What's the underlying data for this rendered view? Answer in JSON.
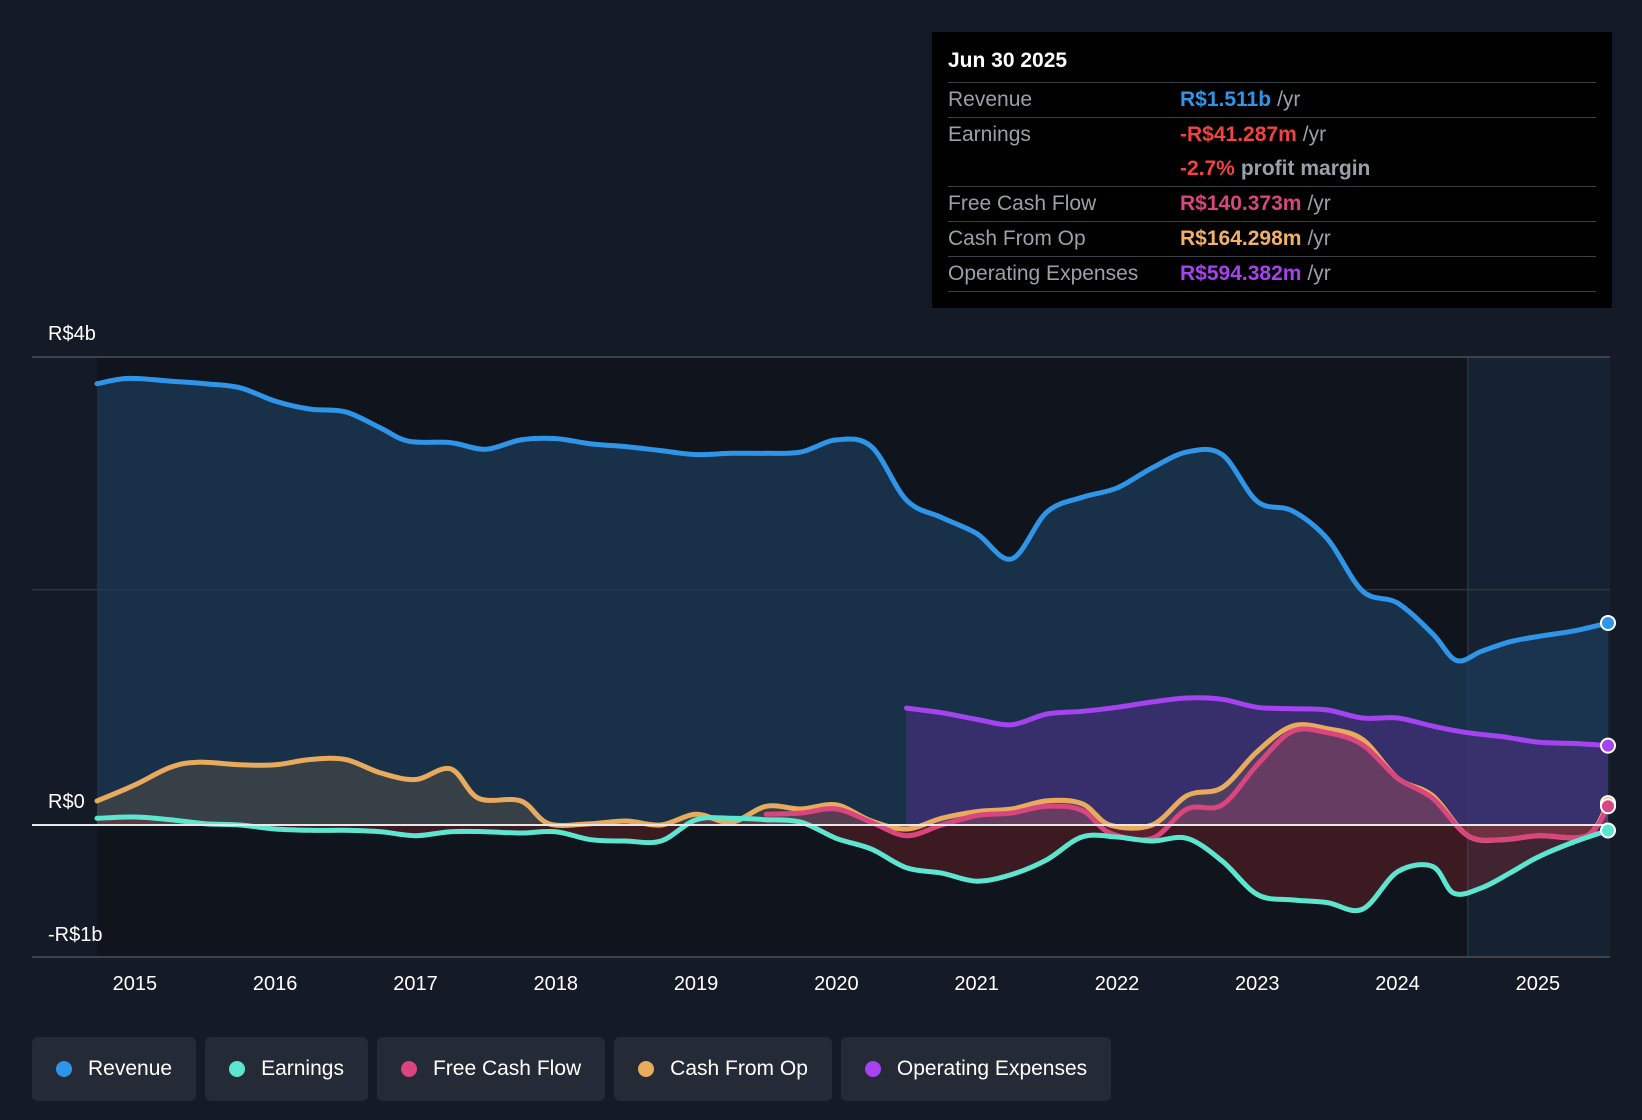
{
  "tooltip": {
    "date": "Jun 30 2025",
    "rows": [
      {
        "label": "Revenue",
        "value": "R$1.511b",
        "unit": "/yr",
        "color": "#2f95e8"
      },
      {
        "label": "Earnings",
        "value": "-R$41.287m",
        "unit": "/yr",
        "color": "#ef4444"
      },
      {
        "label": "",
        "value": "-2.7%",
        "unit": "profit margin",
        "color": "#ef4444"
      },
      {
        "label": "Free Cash Flow",
        "value": "R$140.373m",
        "unit": "/yr",
        "color": "#d9457e"
      },
      {
        "label": "Cash From Op",
        "value": "R$164.298m",
        "unit": "/yr",
        "color": "#f2b166"
      },
      {
        "label": "Operating Expenses",
        "value": "R$594.382m",
        "unit": "/yr",
        "color": "#a443ef"
      }
    ]
  },
  "legend": [
    {
      "label": "Revenue",
      "color": "#2f95e8"
    },
    {
      "label": "Earnings",
      "color": "#5ce6d0"
    },
    {
      "label": "Free Cash Flow",
      "color": "#d9457e"
    },
    {
      "label": "Cash From Op",
      "color": "#e8aa5c"
    },
    {
      "label": "Operating Expenses",
      "color": "#a443ef"
    }
  ],
  "chart_data": {
    "type": "line",
    "y_tick_labels": [
      "R$4b",
      "R$0",
      "-R$1b"
    ],
    "ylim": [
      -1.0,
      3.5
    ],
    "xlim": [
      2014.73,
      2025.5
    ],
    "x_tick_labels": [
      "2015",
      "2016",
      "2017",
      "2018",
      "2019",
      "2020",
      "2021",
      "2022",
      "2023",
      "2024",
      "2025"
    ],
    "x_ticks": [
      2015,
      2016,
      2017,
      2018,
      2019,
      2020,
      2021,
      2022,
      2023,
      2024,
      2025
    ],
    "forecast_start": 2024.5,
    "series": [
      {
        "name": "Revenue",
        "color": "#2f95e8",
        "points": [
          [
            2014.73,
            3.3
          ],
          [
            2014.95,
            3.34
          ],
          [
            2015.25,
            3.32
          ],
          [
            2015.5,
            3.3
          ],
          [
            2015.75,
            3.27
          ],
          [
            2016.0,
            3.17
          ],
          [
            2016.25,
            3.11
          ],
          [
            2016.5,
            3.09
          ],
          [
            2016.75,
            2.97
          ],
          [
            2016.95,
            2.87
          ],
          [
            2017.25,
            2.86
          ],
          [
            2017.5,
            2.81
          ],
          [
            2017.75,
            2.88
          ],
          [
            2018.0,
            2.89
          ],
          [
            2018.25,
            2.85
          ],
          [
            2018.5,
            2.83
          ],
          [
            2018.75,
            2.8
          ],
          [
            2019.0,
            2.77
          ],
          [
            2019.25,
            2.78
          ],
          [
            2019.5,
            2.78
          ],
          [
            2019.75,
            2.79
          ],
          [
            2020.0,
            2.88
          ],
          [
            2020.25,
            2.83
          ],
          [
            2020.5,
            2.43
          ],
          [
            2020.75,
            2.3
          ],
          [
            2021.0,
            2.18
          ],
          [
            2021.25,
            1.99
          ],
          [
            2021.5,
            2.34
          ],
          [
            2021.75,
            2.45
          ],
          [
            2022.0,
            2.52
          ],
          [
            2022.25,
            2.67
          ],
          [
            2022.5,
            2.79
          ],
          [
            2022.75,
            2.77
          ],
          [
            2023.0,
            2.42
          ],
          [
            2023.25,
            2.35
          ],
          [
            2023.5,
            2.14
          ],
          [
            2023.75,
            1.75
          ],
          [
            2024.0,
            1.66
          ],
          [
            2024.25,
            1.43
          ],
          [
            2024.42,
            1.23
          ],
          [
            2024.6,
            1.3
          ],
          [
            2024.8,
            1.37
          ],
          [
            2025.0,
            1.41
          ],
          [
            2025.25,
            1.45
          ],
          [
            2025.5,
            1.511
          ]
        ]
      },
      {
        "name": "Operating Expenses",
        "color": "#a443ef",
        "points": [
          [
            2020.5,
            0.874
          ],
          [
            2020.75,
            0.84
          ],
          [
            2021.0,
            0.79
          ],
          [
            2021.25,
            0.75
          ],
          [
            2021.5,
            0.83
          ],
          [
            2021.75,
            0.85
          ],
          [
            2022.0,
            0.88
          ],
          [
            2022.25,
            0.92
          ],
          [
            2022.5,
            0.95
          ],
          [
            2022.75,
            0.94
          ],
          [
            2023.0,
            0.88
          ],
          [
            2023.25,
            0.87
          ],
          [
            2023.5,
            0.86
          ],
          [
            2023.75,
            0.8
          ],
          [
            2024.0,
            0.8
          ],
          [
            2024.25,
            0.74
          ],
          [
            2024.5,
            0.69
          ],
          [
            2024.75,
            0.66
          ],
          [
            2025.0,
            0.62
          ],
          [
            2025.25,
            0.61
          ],
          [
            2025.5,
            0.594
          ]
        ]
      },
      {
        "name": "Cash From Op",
        "color": "#e8aa5c",
        "points": [
          [
            2014.73,
            0.18
          ],
          [
            2015.0,
            0.3
          ],
          [
            2015.25,
            0.43
          ],
          [
            2015.45,
            0.47
          ],
          [
            2015.75,
            0.45
          ],
          [
            2016.0,
            0.45
          ],
          [
            2016.25,
            0.49
          ],
          [
            2016.5,
            0.49
          ],
          [
            2016.75,
            0.39
          ],
          [
            2017.0,
            0.34
          ],
          [
            2017.25,
            0.42
          ],
          [
            2017.45,
            0.2
          ],
          [
            2017.75,
            0.18
          ],
          [
            2017.95,
            0.01
          ],
          [
            2018.25,
            0.01
          ],
          [
            2018.5,
            0.03
          ],
          [
            2018.75,
            0.0
          ],
          [
            2019.0,
            0.08
          ],
          [
            2019.25,
            0.02
          ],
          [
            2019.5,
            0.14
          ],
          [
            2019.75,
            0.12
          ],
          [
            2020.0,
            0.15
          ],
          [
            2020.25,
            0.03
          ],
          [
            2020.5,
            -0.03
          ],
          [
            2020.75,
            0.05
          ],
          [
            2021.0,
            0.1
          ],
          [
            2021.25,
            0.12
          ],
          [
            2021.5,
            0.18
          ],
          [
            2021.75,
            0.16
          ],
          [
            2021.95,
            0.0
          ],
          [
            2022.25,
            0.0
          ],
          [
            2022.5,
            0.22
          ],
          [
            2022.75,
            0.28
          ],
          [
            2023.0,
            0.55
          ],
          [
            2023.25,
            0.74
          ],
          [
            2023.5,
            0.72
          ],
          [
            2023.75,
            0.64
          ],
          [
            2024.0,
            0.35
          ],
          [
            2024.25,
            0.22
          ],
          [
            2024.5,
            -0.08
          ],
          [
            2024.75,
            -0.11
          ],
          [
            2025.0,
            -0.08
          ],
          [
            2025.35,
            -0.08
          ],
          [
            2025.5,
            0.164
          ]
        ]
      },
      {
        "name": "Free Cash Flow",
        "color": "#d9457e",
        "points": [
          [
            2019.5,
            0.08
          ],
          [
            2019.75,
            0.09
          ],
          [
            2020.0,
            0.12
          ],
          [
            2020.25,
            0.02
          ],
          [
            2020.5,
            -0.08
          ],
          [
            2020.75,
            0.0
          ],
          [
            2021.0,
            0.07
          ],
          [
            2021.25,
            0.09
          ],
          [
            2021.5,
            0.14
          ],
          [
            2021.75,
            0.11
          ],
          [
            2021.95,
            -0.06
          ],
          [
            2022.25,
            -0.1
          ],
          [
            2022.5,
            0.12
          ],
          [
            2022.75,
            0.15
          ],
          [
            2023.0,
            0.45
          ],
          [
            2023.25,
            0.7
          ],
          [
            2023.5,
            0.69
          ],
          [
            2023.75,
            0.6
          ],
          [
            2024.0,
            0.35
          ],
          [
            2024.25,
            0.2
          ],
          [
            2024.5,
            -0.08
          ],
          [
            2024.75,
            -0.11
          ],
          [
            2025.0,
            -0.08
          ],
          [
            2025.35,
            -0.08
          ],
          [
            2025.5,
            0.14
          ]
        ]
      },
      {
        "name": "Earnings",
        "color": "#5ce6d0",
        "points": [
          [
            2014.73,
            0.05
          ],
          [
            2015.0,
            0.06
          ],
          [
            2015.25,
            0.04
          ],
          [
            2015.5,
            0.01
          ],
          [
            2015.75,
            0.0
          ],
          [
            2016.0,
            -0.03
          ],
          [
            2016.25,
            -0.04
          ],
          [
            2016.5,
            -0.04
          ],
          [
            2016.75,
            -0.05
          ],
          [
            2017.0,
            -0.08
          ],
          [
            2017.25,
            -0.05
          ],
          [
            2017.5,
            -0.05
          ],
          [
            2017.75,
            -0.06
          ],
          [
            2018.0,
            -0.05
          ],
          [
            2018.25,
            -0.11
          ],
          [
            2018.5,
            -0.12
          ],
          [
            2018.75,
            -0.12
          ],
          [
            2019.0,
            0.04
          ],
          [
            2019.25,
            0.05
          ],
          [
            2019.5,
            0.04
          ],
          [
            2019.75,
            0.02
          ],
          [
            2020.0,
            -0.1
          ],
          [
            2020.25,
            -0.18
          ],
          [
            2020.5,
            -0.32
          ],
          [
            2020.75,
            -0.36
          ],
          [
            2021.0,
            -0.42
          ],
          [
            2021.25,
            -0.37
          ],
          [
            2021.5,
            -0.26
          ],
          [
            2021.75,
            -0.09
          ],
          [
            2022.0,
            -0.09
          ],
          [
            2022.25,
            -0.12
          ],
          [
            2022.5,
            -0.1
          ],
          [
            2022.75,
            -0.27
          ],
          [
            2023.0,
            -0.52
          ],
          [
            2023.25,
            -0.56
          ],
          [
            2023.5,
            -0.58
          ],
          [
            2023.75,
            -0.63
          ],
          [
            2024.0,
            -0.35
          ],
          [
            2024.25,
            -0.31
          ],
          [
            2024.4,
            -0.51
          ],
          [
            2024.6,
            -0.47
          ],
          [
            2024.8,
            -0.36
          ],
          [
            2025.0,
            -0.24
          ],
          [
            2025.25,
            -0.13
          ],
          [
            2025.5,
            -0.041
          ]
        ]
      }
    ]
  }
}
